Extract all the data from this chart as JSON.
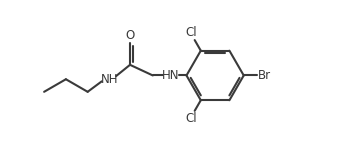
{
  "background": "#ffffff",
  "line_color": "#3a3a3a",
  "line_width": 1.5,
  "font_size": 8.5,
  "xlim": [
    0,
    10
  ],
  "ylim": [
    0,
    4.4
  ],
  "figsize": [
    3.55,
    1.55
  ],
  "dpi": 100
}
